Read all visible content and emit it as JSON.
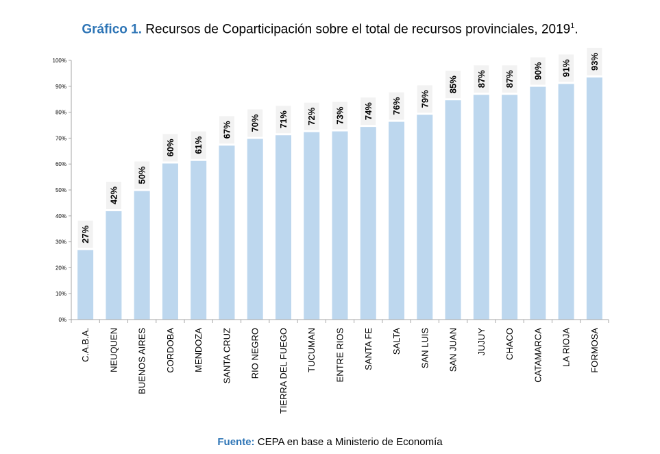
{
  "header": {
    "title_lead": "Gráfico 1.",
    "title_text": "Recursos de Coparticipación sobre el total de recursos provinciales, 2019",
    "title_sup": "1",
    "title_end": "."
  },
  "footer": {
    "source_lead": "Fuente:",
    "source_text": "CEPA en base a Ministerio de Economía"
  },
  "colors": {
    "bar": "#bdd7ee",
    "label_bg": "#f2f2f2",
    "axis": "#a6a6a6",
    "accent": "#2e75b6"
  },
  "chart_data": {
    "type": "bar",
    "title": "Recursos de Coparticipación sobre el total de recursos provinciales, 2019",
    "xlabel": "",
    "ylabel": "",
    "ylim": [
      0,
      100
    ],
    "yticks": [
      "0%",
      "10%",
      "20%",
      "30%",
      "40%",
      "50%",
      "60%",
      "70%",
      "80%",
      "90%",
      "100%"
    ],
    "grid": false,
    "legend": "none",
    "categories": [
      "C.A.B.A.",
      "NEUQUEN",
      "BUENOS AIRES",
      "CORDOBA",
      "MENDOZA",
      "SANTA CRUZ",
      "RIO NEGRO",
      "TIERRA DEL FUEGO",
      "TUCUMAN",
      "ENTRE RIOS",
      "SANTA FE",
      "SALTA",
      "SAN LUIS",
      "SAN JUAN",
      "JUJUY",
      "CHACO",
      "CATAMARCA",
      "LA RIOJA",
      "FORMOSA"
    ],
    "values": [
      26.8,
      41.8,
      49.6,
      60.2,
      61.2,
      67.1,
      69.7,
      71.1,
      72.3,
      72.6,
      74.3,
      76.3,
      79.0,
      84.6,
      86.7,
      86.7,
      89.8,
      90.9,
      93.4
    ],
    "data_labels": [
      "27%",
      "42%",
      "50%",
      "60%",
      "61%",
      "67%",
      "70%",
      "71%",
      "72%",
      "73%",
      "74%",
      "76%",
      "79%",
      "85%",
      "87%",
      "87%",
      "90%",
      "91%",
      "93%"
    ]
  }
}
